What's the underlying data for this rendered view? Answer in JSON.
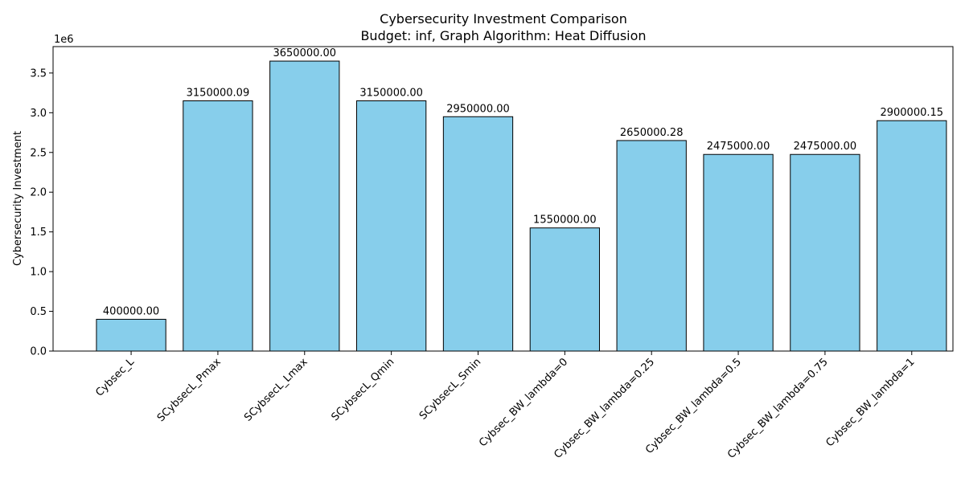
{
  "chart_data": {
    "type": "bar",
    "title": "Cybersecurity Investment Comparison",
    "subtitle": "Budget: inf, Graph Algorithm: Heat Diffusion",
    "xlabel": "",
    "ylabel": "Cybersecurity Investment",
    "y_scale_label": "1e6",
    "ylim": [
      0,
      3832500
    ],
    "y_ticks": [
      0,
      500000,
      1000000,
      1500000,
      2000000,
      2500000,
      3000000,
      3500000
    ],
    "y_tick_labels": [
      "0.0",
      "0.5",
      "1.0",
      "1.5",
      "2.0",
      "2.5",
      "3.0",
      "3.5"
    ],
    "categories": [
      "Cybsec_L",
      "SCybsecL_Pmax",
      "SCybsecL_Lmax",
      "SCybsecL_Qmin",
      "SCybsecL_Smin",
      "Cybsec_BW_lambda=0",
      "Cybsec_BW_lambda=0.25",
      "Cybsec_BW_lambda=0.5",
      "Cybsec_BW_lambda=0.75",
      "Cybsec_BW_lambda=1"
    ],
    "values": [
      400000.0,
      3150000.09,
      3650000.0,
      3150000.0,
      2950000.0,
      1550000.0,
      2650000.28,
      2475000.0,
      2475000.0,
      2900000.15
    ],
    "value_labels": [
      "400000.00",
      "3150000.09",
      "3650000.00",
      "3150000.00",
      "2950000.00",
      "1550000.00",
      "2650000.28",
      "2475000.00",
      "2475000.00",
      "2900000.15"
    ],
    "bar_color": "#87ceeb",
    "edge_color": "#000000",
    "grid": false,
    "legend": "none"
  }
}
